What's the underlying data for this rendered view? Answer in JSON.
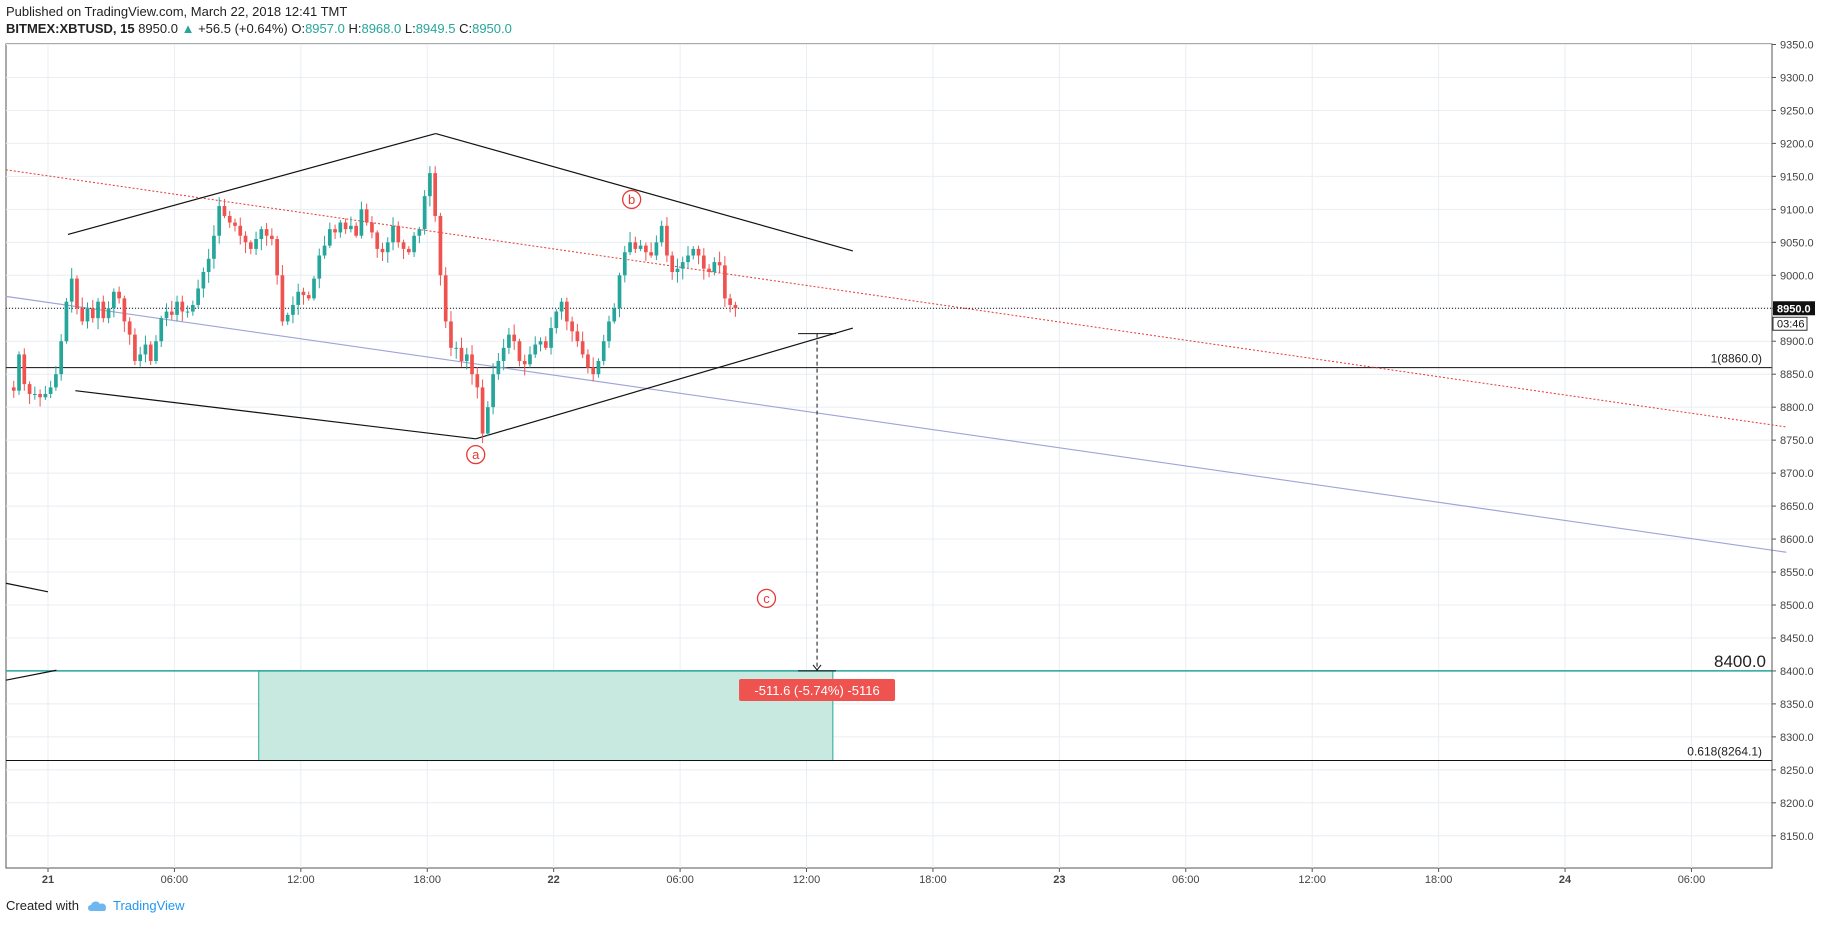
{
  "header": {
    "published": "Published on TradingView.com, March 22, 2018 12:41 TMT",
    "symbol": "BITMEX:XBTUSD, 15",
    "last": "8950.0",
    "change_arrow": "▲",
    "change": "+56.5 (+0.64%)",
    "o_label": "O:",
    "o_value": "8957.0",
    "h_label": "H:",
    "h_value": "8968.0",
    "l_label": "L:",
    "l_value": "8949.5",
    "c_label": "C:",
    "c_value": "8950.0"
  },
  "footer": {
    "created_with": "Created with",
    "brand": "TradingView",
    "logo_icon": "tradingview-cloud-icon"
  },
  "colors": {
    "up": "#26a69a",
    "down": "#ef5350",
    "grid": "#e8eef3",
    "annotation": "#e53935",
    "target_zone": "#c7e9e0",
    "target_border": "#26a69a",
    "trendline_blue": "#9fa3d8"
  },
  "chart_data": {
    "type": "candlestick",
    "symbol": "BITMEX:XBTUSD",
    "interval": "15",
    "y_ticks": [
      "9350.0",
      "9300.0",
      "9250.0",
      "9200.0",
      "9150.0",
      "9100.0",
      "9050.0",
      "9000.0",
      "8950.0",
      "8900.0",
      "8850.0",
      "8800.0",
      "8750.0",
      "8700.0",
      "8650.0",
      "8600.0",
      "8550.0",
      "8500.0",
      "8450.0",
      "8400.0",
      "8350.0",
      "8300.0",
      "8250.0",
      "8200.0",
      "8150.0"
    ],
    "y_tick_values": [
      9350,
      9300,
      9250,
      9200,
      9150,
      9100,
      9050,
      9000,
      8950,
      8900,
      8850,
      8800,
      8750,
      8700,
      8650,
      8600,
      8550,
      8500,
      8450,
      8400,
      8350,
      8300,
      8250,
      8200,
      8150
    ],
    "ylim": [
      8125,
      9370
    ],
    "x_ticks": [
      "21",
      "06:00",
      "12:00",
      "18:00",
      "22",
      "06:00",
      "12:00",
      "18:00",
      "23",
      "06:00",
      "12:00",
      "18:00",
      "24",
      "06:00"
    ],
    "x_tick_hours": [
      0,
      6,
      12,
      18,
      24,
      30,
      36,
      42,
      48,
      54,
      60,
      66,
      72,
      78
    ],
    "xlim_hours": [
      -2,
      82.5
    ],
    "last_price_label": "8950.0",
    "countdown_label": "03:46",
    "candles_hours_start": -1.875,
    "candles_step_hours": 0.25,
    "closes": [
      8830,
      8825,
      8880,
      8835,
      8820,
      8820,
      8815,
      8820,
      8830,
      8850,
      8900,
      8960,
      8995,
      8950,
      8930,
      8950,
      8935,
      8960,
      8935,
      8950,
      8975,
      8965,
      8930,
      8910,
      8870,
      8880,
      8895,
      8870,
      8900,
      8935,
      8945,
      8940,
      8960,
      8945,
      8945,
      8955,
      8980,
      9005,
      9025,
      9060,
      9105,
      9090,
      9080,
      9075,
      9060,
      9050,
      9040,
      9055,
      9070,
      9060,
      9055,
      9000,
      8930,
      8940,
      8955,
      8975,
      8970,
      8965,
      8995,
      9030,
      9045,
      9070,
      9065,
      9080,
      9070,
      9075,
      9060,
      9100,
      9080,
      9065,
      9040,
      9035,
      9050,
      9075,
      9050,
      9040,
      9035,
      9060,
      9070,
      9120,
      9155,
      9090,
      9000,
      8930,
      8890,
      8890,
      8870,
      8880,
      8850,
      8830,
      8760,
      8800,
      8850,
      8870,
      8890,
      8910,
      8900,
      8870,
      8865,
      8880,
      8895,
      8900,
      8890,
      8920,
      8945,
      8960,
      8930,
      8915,
      8900,
      8880,
      8860,
      8850,
      8870,
      8900,
      8930,
      8950,
      9000,
      9035,
      9050,
      9040,
      9045,
      9035,
      9030,
      9050,
      9075,
      9030,
      9005,
      9010,
      9020,
      9030,
      9040,
      9030,
      9010,
      9005,
      9020,
      9015,
      8965,
      8955,
      8950
    ],
    "annotations": {
      "wave_labels": [
        "a",
        "b",
        "c"
      ],
      "fib_levels": [
        {
          "label": "1(8860.0)",
          "value": 8860.0
        },
        {
          "label": "0.618(8264.1)",
          "value": 8264.1
        }
      ],
      "target_label": "8400.0",
      "target_value": 8400.0,
      "target_zone": [
        8264.1,
        8400.0
      ],
      "measure_label": "-511.6 (-5.74%) -5116",
      "measure_from": 8911.6,
      "measure_to": 8400.0
    }
  }
}
